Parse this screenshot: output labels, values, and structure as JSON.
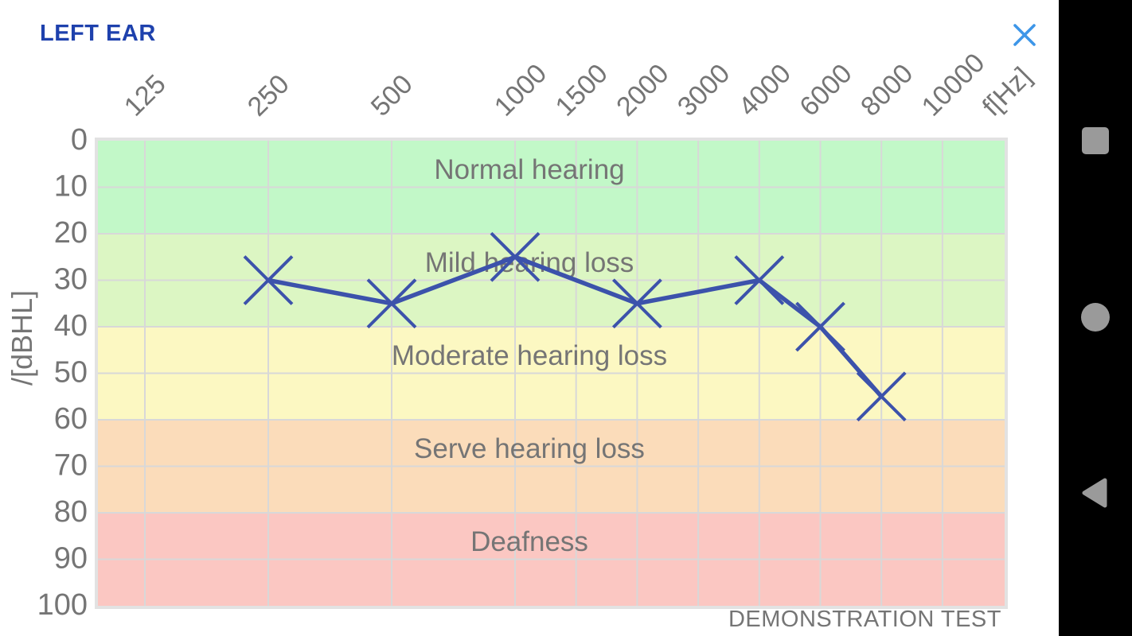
{
  "header": {
    "title": "LEFT EAR"
  },
  "chart_data": {
    "type": "line",
    "title": "LEFT EAR audiogram",
    "xlabel": "f[Hz]",
    "ylabel": "/[dBHL]",
    "x_ticks": [
      "125",
      "250",
      "500",
      "1000",
      "1500",
      "2000",
      "3000",
      "4000",
      "6000",
      "8000",
      "10000"
    ],
    "y_ticks": [
      0,
      10,
      20,
      30,
      40,
      50,
      60,
      70,
      80,
      90,
      100
    ],
    "ylim": [
      0,
      100
    ],
    "y_inverted": true,
    "grid": true,
    "zones": [
      {
        "label": "Normal hearing",
        "from": 0,
        "to": 20,
        "color": "#c2f8c8"
      },
      {
        "label": "Mild hearing loss",
        "from": 20,
        "to": 40,
        "color": "#dcf6c3"
      },
      {
        "label": "Moderate hearing loss",
        "from": 40,
        "to": 60,
        "color": "#fcf8c2"
      },
      {
        "label": "Serve hearing loss",
        "from": 60,
        "to": 80,
        "color": "#fbdcba"
      },
      {
        "label": "Deafness",
        "from": 80,
        "to": 100,
        "color": "#fbc7c2"
      }
    ],
    "series": [
      {
        "name": "left-ear-thresholds",
        "marker": "x",
        "color": "#3c52ab",
        "points": [
          {
            "f": 250,
            "db": 30
          },
          {
            "f": 500,
            "db": 35
          },
          {
            "f": 1000,
            "db": 25
          },
          {
            "f": 2000,
            "db": 35
          },
          {
            "f": 4000,
            "db": 30
          },
          {
            "f": 6000,
            "db": 40
          },
          {
            "f": 8000,
            "db": 55
          }
        ]
      }
    ],
    "footer": "DEMONSTRATION TEST",
    "colors": {
      "gridline": "#d8d8d8",
      "frame": "#e2e2e2",
      "tick_text": "#757575",
      "zone_text": "#757575"
    }
  },
  "nav_bar": {
    "background": "#000000",
    "icon_color": "#9a9a9a",
    "items": [
      {
        "name": "recents"
      },
      {
        "name": "home"
      },
      {
        "name": "back"
      }
    ]
  },
  "colors": {
    "title": "#1e41ad",
    "close_icon": "#3d96e8",
    "background": "#ffffff"
  }
}
